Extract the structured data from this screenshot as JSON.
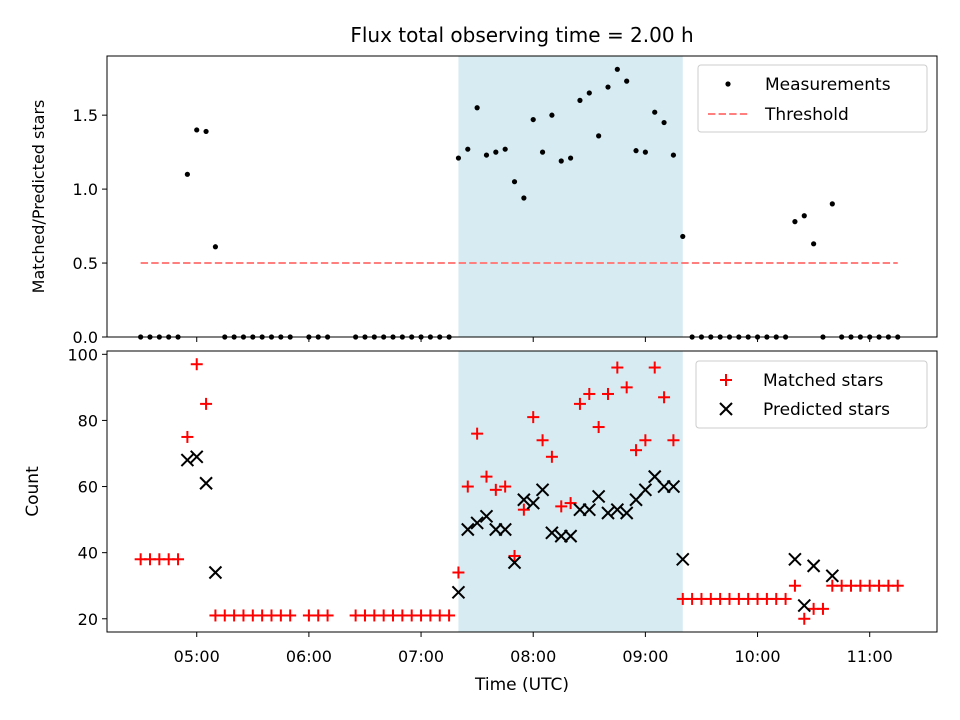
{
  "chart_data": [
    {
      "type": "scatter",
      "title": "Flux total observing time = 2.00 h",
      "ylabel": "Matched/Predicted stars",
      "xlabel": "",
      "xlim": [
        "04:12",
        "11:36"
      ],
      "ylim": [
        0,
        1.9
      ],
      "yticks": [
        0.0,
        0.5,
        1.0,
        1.5
      ],
      "ytick_labels": [
        "0.0",
        "0.5",
        "1.0",
        "1.5"
      ],
      "highlight_band": {
        "from": "07:20",
        "to": "09:20",
        "color": "#add8e6"
      },
      "legend_position": "top-right",
      "series": [
        {
          "name": "Measurements",
          "marker": "dot",
          "color": "#000000",
          "points": [
            [
              "04:30",
              0
            ],
            [
              "04:35",
              0
            ],
            [
              "04:40",
              0
            ],
            [
              "04:45",
              0
            ],
            [
              "04:50",
              0
            ],
            [
              "04:55",
              1.1
            ],
            [
              "05:00",
              1.4
            ],
            [
              "05:05",
              1.39
            ],
            [
              "05:10",
              0.61
            ],
            [
              "05:15",
              0
            ],
            [
              "05:20",
              0
            ],
            [
              "05:25",
              0
            ],
            [
              "05:30",
              0
            ],
            [
              "05:35",
              0
            ],
            [
              "05:40",
              0
            ],
            [
              "05:45",
              0
            ],
            [
              "05:50",
              0
            ],
            [
              "06:00",
              0
            ],
            [
              "06:05",
              0
            ],
            [
              "06:10",
              0
            ],
            [
              "06:25",
              0
            ],
            [
              "06:30",
              0
            ],
            [
              "06:35",
              0
            ],
            [
              "06:40",
              0
            ],
            [
              "06:45",
              0
            ],
            [
              "06:50",
              0
            ],
            [
              "06:55",
              0
            ],
            [
              "07:00",
              0
            ],
            [
              "07:05",
              0
            ],
            [
              "07:10",
              0
            ],
            [
              "07:15",
              0
            ],
            [
              "07:20",
              1.21
            ],
            [
              "07:25",
              1.27
            ],
            [
              "07:30",
              1.55
            ],
            [
              "07:35",
              1.23
            ],
            [
              "07:40",
              1.25
            ],
            [
              "07:45",
              1.27
            ],
            [
              "07:50",
              1.05
            ],
            [
              "07:55",
              0.94
            ],
            [
              "08:00",
              1.47
            ],
            [
              "08:05",
              1.25
            ],
            [
              "08:10",
              1.5
            ],
            [
              "08:15",
              1.19
            ],
            [
              "08:20",
              1.21
            ],
            [
              "08:25",
              1.6
            ],
            [
              "08:30",
              1.65
            ],
            [
              "08:35",
              1.36
            ],
            [
              "08:40",
              1.69
            ],
            [
              "08:45",
              1.81
            ],
            [
              "08:50",
              1.73
            ],
            [
              "08:55",
              1.26
            ],
            [
              "09:00",
              1.25
            ],
            [
              "09:05",
              1.52
            ],
            [
              "09:10",
              1.45
            ],
            [
              "09:15",
              1.23
            ],
            [
              "09:20",
              0.68
            ],
            [
              "09:25",
              0
            ],
            [
              "09:30",
              0
            ],
            [
              "09:35",
              0
            ],
            [
              "09:40",
              0
            ],
            [
              "09:45",
              0
            ],
            [
              "09:50",
              0
            ],
            [
              "09:55",
              0
            ],
            [
              "10:00",
              0
            ],
            [
              "10:05",
              0
            ],
            [
              "10:10",
              0
            ],
            [
              "10:15",
              0
            ],
            [
              "10:20",
              0.78
            ],
            [
              "10:25",
              0.82
            ],
            [
              "10:30",
              0.63
            ],
            [
              "10:35",
              0
            ],
            [
              "10:40",
              0.9
            ],
            [
              "10:45",
              0
            ],
            [
              "10:50",
              0
            ],
            [
              "10:55",
              0
            ],
            [
              "11:00",
              0
            ],
            [
              "11:05",
              0
            ],
            [
              "11:10",
              0
            ],
            [
              "11:15",
              0
            ]
          ]
        },
        {
          "name": "Threshold",
          "type": "line",
          "style": "dashed",
          "color": "#ff7f7f",
          "points": [
            [
              "04:30",
              0.5
            ],
            [
              "11:15",
              0.5
            ]
          ]
        }
      ]
    },
    {
      "type": "scatter",
      "title": "",
      "xlabel": "Time (UTC)",
      "ylabel": "Count",
      "xlim": [
        "04:12",
        "11:36"
      ],
      "ylim": [
        16,
        101
      ],
      "xticks": [
        "05:00",
        "06:00",
        "07:00",
        "08:00",
        "09:00",
        "10:00",
        "11:00"
      ],
      "yticks": [
        20,
        40,
        60,
        80,
        100
      ],
      "ytick_labels": [
        "20",
        "40",
        "60",
        "80",
        "100"
      ],
      "highlight_band": {
        "from": "07:20",
        "to": "09:20",
        "color": "#add8e6"
      },
      "legend_position": "top-right",
      "series": [
        {
          "name": "Matched stars",
          "marker": "plus",
          "color": "#ff0000",
          "points": [
            [
              "04:30",
              38
            ],
            [
              "04:35",
              38
            ],
            [
              "04:40",
              38
            ],
            [
              "04:45",
              38
            ],
            [
              "04:50",
              38
            ],
            [
              "04:55",
              75
            ],
            [
              "05:00",
              97
            ],
            [
              "05:05",
              85
            ],
            [
              "05:10",
              21
            ],
            [
              "05:15",
              21
            ],
            [
              "05:20",
              21
            ],
            [
              "05:25",
              21
            ],
            [
              "05:30",
              21
            ],
            [
              "05:35",
              21
            ],
            [
              "05:40",
              21
            ],
            [
              "05:45",
              21
            ],
            [
              "05:50",
              21
            ],
            [
              "06:00",
              21
            ],
            [
              "06:05",
              21
            ],
            [
              "06:10",
              21
            ],
            [
              "06:25",
              21
            ],
            [
              "06:30",
              21
            ],
            [
              "06:35",
              21
            ],
            [
              "06:40",
              21
            ],
            [
              "06:45",
              21
            ],
            [
              "06:50",
              21
            ],
            [
              "06:55",
              21
            ],
            [
              "07:00",
              21
            ],
            [
              "07:05",
              21
            ],
            [
              "07:10",
              21
            ],
            [
              "07:15",
              21
            ],
            [
              "07:20",
              34
            ],
            [
              "07:25",
              60
            ],
            [
              "07:30",
              76
            ],
            [
              "07:35",
              63
            ],
            [
              "07:40",
              59
            ],
            [
              "07:45",
              60
            ],
            [
              "07:50",
              39
            ],
            [
              "07:55",
              53
            ],
            [
              "08:00",
              81
            ],
            [
              "08:05",
              74
            ],
            [
              "08:10",
              69
            ],
            [
              "08:15",
              54
            ],
            [
              "08:20",
              55
            ],
            [
              "08:25",
              85
            ],
            [
              "08:30",
              88
            ],
            [
              "08:35",
              78
            ],
            [
              "08:40",
              88
            ],
            [
              "08:45",
              96
            ],
            [
              "08:50",
              90
            ],
            [
              "08:55",
              71
            ],
            [
              "09:00",
              74
            ],
            [
              "09:05",
              96
            ],
            [
              "09:10",
              87
            ],
            [
              "09:15",
              74
            ],
            [
              "09:20",
              26
            ],
            [
              "09:25",
              26
            ],
            [
              "09:30",
              26
            ],
            [
              "09:35",
              26
            ],
            [
              "09:40",
              26
            ],
            [
              "09:45",
              26
            ],
            [
              "09:50",
              26
            ],
            [
              "09:55",
              26
            ],
            [
              "10:00",
              26
            ],
            [
              "10:05",
              26
            ],
            [
              "10:10",
              26
            ],
            [
              "10:15",
              26
            ],
            [
              "10:20",
              30
            ],
            [
              "10:25",
              20
            ],
            [
              "10:30",
              23
            ],
            [
              "10:35",
              23
            ],
            [
              "10:40",
              30
            ],
            [
              "10:45",
              30
            ],
            [
              "10:50",
              30
            ],
            [
              "10:55",
              30
            ],
            [
              "11:00",
              30
            ],
            [
              "11:05",
              30
            ],
            [
              "11:10",
              30
            ],
            [
              "11:15",
              30
            ]
          ]
        },
        {
          "name": "Predicted stars",
          "marker": "x",
          "color": "#000000",
          "points": [
            [
              "04:55",
              68
            ],
            [
              "05:00",
              69
            ],
            [
              "05:05",
              61
            ],
            [
              "05:10",
              34
            ],
            [
              "07:20",
              28
            ],
            [
              "07:25",
              47
            ],
            [
              "07:30",
              49
            ],
            [
              "07:35",
              51
            ],
            [
              "07:40",
              47
            ],
            [
              "07:45",
              47
            ],
            [
              "07:50",
              37
            ],
            [
              "07:55",
              56
            ],
            [
              "08:00",
              55
            ],
            [
              "08:05",
              59
            ],
            [
              "08:10",
              46
            ],
            [
              "08:15",
              45
            ],
            [
              "08:20",
              45
            ],
            [
              "08:25",
              53
            ],
            [
              "08:30",
              53
            ],
            [
              "08:35",
              57
            ],
            [
              "08:40",
              52
            ],
            [
              "08:45",
              53
            ],
            [
              "08:50",
              52
            ],
            [
              "08:55",
              56
            ],
            [
              "09:00",
              59
            ],
            [
              "09:05",
              63
            ],
            [
              "09:10",
              60
            ],
            [
              "09:15",
              60
            ],
            [
              "09:20",
              38
            ],
            [
              "10:20",
              38
            ],
            [
              "10:25",
              24
            ],
            [
              "10:30",
              36
            ],
            [
              "10:40",
              33
            ]
          ]
        }
      ]
    }
  ]
}
